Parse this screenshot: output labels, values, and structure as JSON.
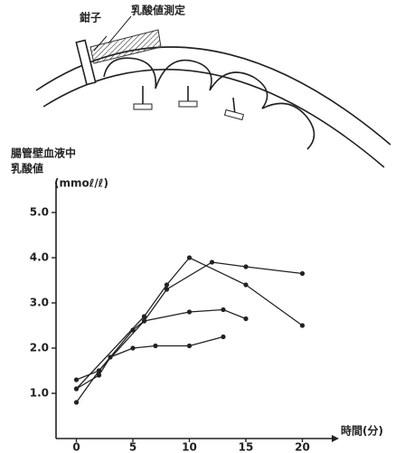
{
  "diagram": {
    "clamp_label": "鉗子",
    "measure_label": "乳酸値測定"
  },
  "chart_data": {
    "type": "line",
    "ylabel": [
      "腸管壁血液中",
      "乳酸値"
    ],
    "unit_label": "(mmoℓ/ℓ)",
    "xlabel": "時間(分)",
    "xlim": [
      -1.8,
      21
    ],
    "xticks": [
      0,
      5,
      10,
      15,
      20
    ],
    "ylim": [
      0,
      5.6
    ],
    "yticks": [
      {
        "value": 1,
        "label": "1.0"
      },
      {
        "value": 2,
        "label": "2.0"
      },
      {
        "value": 3,
        "label": "3.0"
      },
      {
        "value": 4,
        "label": "4.0"
      },
      {
        "value": 5,
        "label": "5.0"
      }
    ],
    "series": [
      {
        "color": "#222222",
        "x": [
          0,
          2,
          3,
          5,
          7,
          10,
          13
        ],
        "values": [
          1.1,
          1.4,
          1.8,
          2.0,
          2.05,
          2.05,
          2.25
        ]
      },
      {
        "color": "#222222",
        "x": [
          0,
          2,
          5,
          6,
          10,
          13,
          15
        ],
        "values": [
          1.3,
          1.5,
          2.4,
          2.6,
          2.8,
          2.85,
          2.65
        ]
      },
      {
        "color": "#222222",
        "x": [
          0,
          6,
          8,
          10,
          15,
          20
        ],
        "values": [
          1.1,
          2.7,
          3.4,
          4.0,
          3.4,
          2.5
        ]
      },
      {
        "color": "#222222",
        "x": [
          0,
          2,
          6,
          8,
          12,
          15,
          20
        ],
        "values": [
          0.8,
          1.5,
          2.6,
          3.3,
          3.9,
          3.8,
          3.65
        ]
      }
    ]
  }
}
